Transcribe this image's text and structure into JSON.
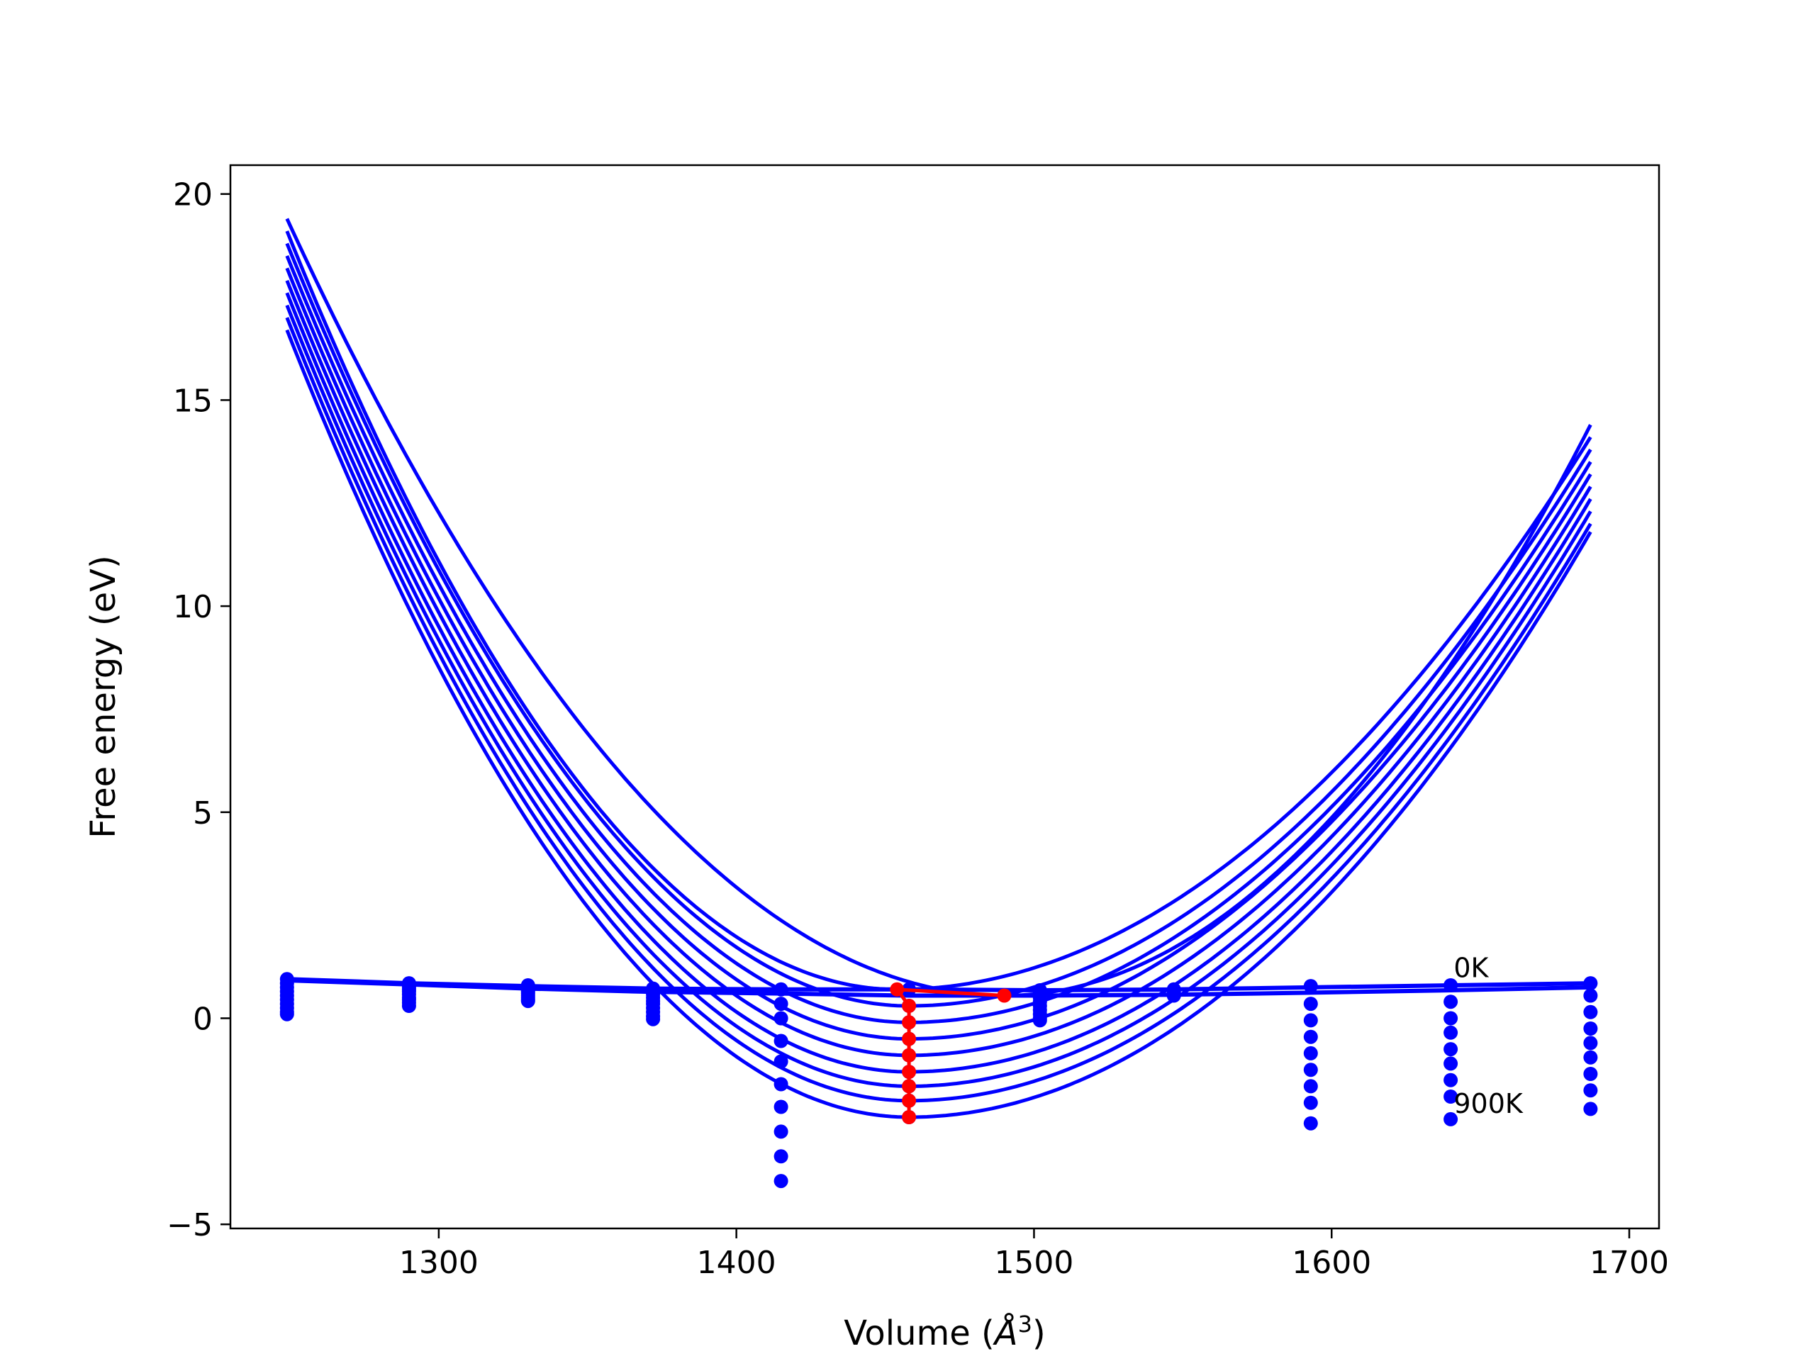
{
  "chart_data": {
    "type": "line",
    "xlabel": "Volume ($\\AA^3$)",
    "xlabel_parts": {
      "before": "Volume (",
      "italic": "Å",
      "sup": "3",
      "after": ")"
    },
    "ylabel": "Free energy (eV)",
    "xlim": [
      1230,
      1710
    ],
    "ylim": [
      -5.1,
      20.7
    ],
    "xticks": [
      1300,
      1400,
      1500,
      1600,
      1700
    ],
    "yticks": [
      -5,
      0,
      5,
      10,
      15,
      20
    ],
    "ytick_labels": [
      "−5",
      "0",
      "5",
      "10",
      "15",
      "20"
    ],
    "grid": false,
    "annotations": [
      {
        "text": "0K",
        "x": 1641,
        "y": 1.0
      },
      {
        "text": "900K",
        "x": 1641,
        "y": -2.3
      }
    ],
    "colors": {
      "curves": "#0000ff",
      "minima": "#ff0000",
      "frame": "#000000"
    },
    "volumes": [
      1249,
      1290,
      1330,
      1372,
      1415,
      1458,
      1502,
      1547,
      1593,
      1640,
      1687
    ],
    "fit_curves": {
      "x_range": [
        1249,
        1687
      ],
      "count": 10,
      "y_start": [
        19.4,
        19.1,
        18.8,
        18.5,
        18.2,
        17.9,
        17.6,
        17.3,
        17.0,
        16.7
      ],
      "y_end": [
        14.4,
        14.1,
        13.8,
        13.5,
        13.2,
        12.9,
        12.6,
        12.3,
        12.0,
        11.8
      ],
      "minimum_x": [
        1490,
        1454,
        1458,
        1458,
        1458,
        1458,
        1458,
        1458,
        1458,
        1458
      ],
      "minimum_y": [
        0.55,
        0.7,
        0.3,
        -0.1,
        -0.5,
        -0.9,
        -1.3,
        -1.65,
        -2.0,
        -2.4
      ]
    },
    "points": [
      {
        "x": 1249,
        "ys": [
          0.95,
          0.85,
          0.75,
          0.65,
          0.55,
          0.45,
          0.35,
          0.25,
          0.15,
          0.1
        ]
      },
      {
        "x": 1290,
        "ys": [
          0.85,
          0.8,
          0.75,
          0.7,
          0.65,
          0.58,
          0.5,
          0.45,
          0.38,
          0.3
        ]
      },
      {
        "x": 1330,
        "ys": [
          0.8,
          0.75,
          0.72,
          0.68,
          0.64,
          0.6,
          0.55,
          0.5,
          0.45,
          0.42
        ]
      },
      {
        "x": 1372,
        "ys": [
          0.72,
          0.65,
          0.58,
          0.5,
          0.42,
          0.35,
          0.25,
          0.15,
          0.05,
          -0.02
        ]
      },
      {
        "x": 1415,
        "ys": [
          0.7,
          0.35,
          0.0,
          -0.55,
          -1.05,
          -1.6,
          -2.15,
          -2.75,
          -3.35,
          -3.95
        ]
      },
      {
        "x": 1458,
        "ys": [
          0.7,
          0.3,
          -0.1,
          -0.5,
          -0.9,
          -1.3,
          -1.65,
          -2.0,
          -2.4
        ]
      },
      {
        "x": 1502,
        "ys": [
          0.68,
          0.6,
          0.5,
          0.4,
          0.3,
          0.2,
          0.1,
          0.0,
          -0.05
        ]
      },
      {
        "x": 1547,
        "ys": [
          0.7,
          0.66,
          0.62,
          0.58,
          0.55
        ]
      },
      {
        "x": 1593,
        "ys": [
          0.78,
          0.35,
          -0.05,
          -0.45,
          -0.85,
          -1.25,
          -1.65,
          -2.05,
          -2.55
        ]
      },
      {
        "x": 1640,
        "ys": [
          0.8,
          0.4,
          0.0,
          -0.35,
          -0.75,
          -1.1,
          -1.5,
          -1.9,
          -2.45
        ]
      },
      {
        "x": 1687,
        "ys": [
          0.85,
          0.55,
          0.15,
          -0.25,
          -0.6,
          -0.95,
          -1.35,
          -1.75,
          -2.2
        ]
      }
    ],
    "flat_lines": [
      {
        "x": [
          1249,
          1290,
          1330,
          1372,
          1415,
          1458,
          1502,
          1547,
          1593,
          1640,
          1687
        ],
        "y": [
          0.95,
          0.85,
          0.78,
          0.72,
          0.7,
          0.7,
          0.68,
          0.7,
          0.75,
          0.8,
          0.85
        ]
      },
      {
        "x": [
          1249,
          1290,
          1330,
          1372,
          1415,
          1458,
          1502,
          1547,
          1593,
          1640,
          1687
        ],
        "y": [
          0.92,
          0.82,
          0.72,
          0.64,
          0.6,
          0.55,
          0.55,
          0.57,
          0.62,
          0.68,
          0.75
        ]
      }
    ],
    "minima_path": {
      "x": [
        1490,
        1454,
        1458,
        1458,
        1458,
        1458,
        1458,
        1458,
        1458,
        1458
      ],
      "y": [
        0.55,
        0.7,
        0.3,
        -0.1,
        -0.5,
        -0.9,
        -1.3,
        -1.65,
        -2.0,
        -2.4
      ]
    }
  }
}
